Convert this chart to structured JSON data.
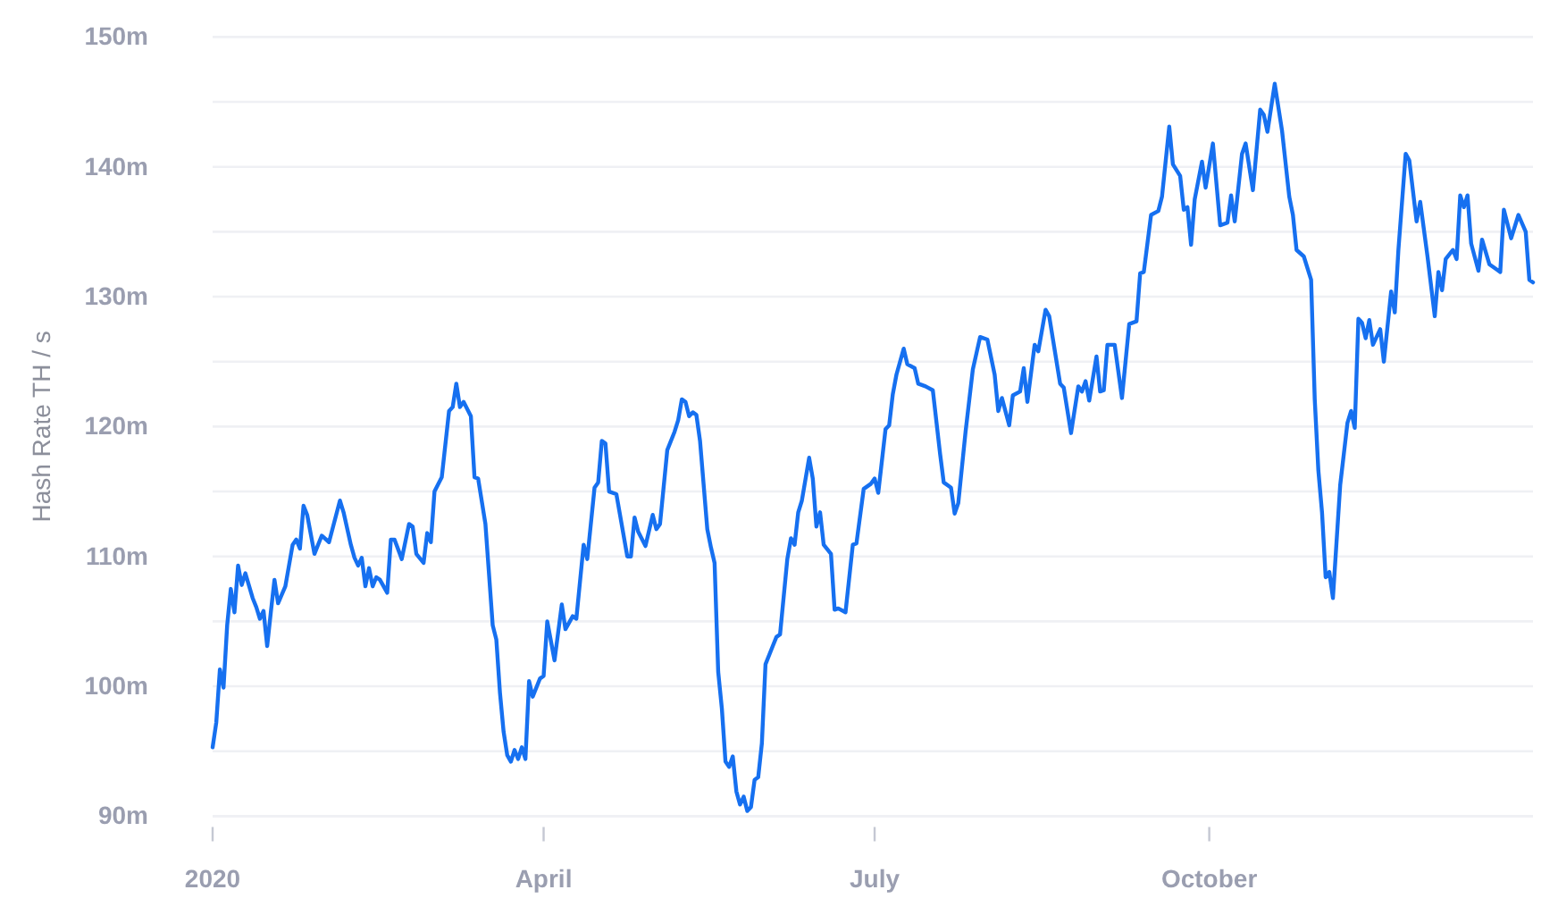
{
  "chart_data": {
    "type": "line",
    "ylabel": "Hash Rate TH / s",
    "x": [
      "2020-01-01",
      "2020-01-02",
      "2020-01-03",
      "2020-01-04",
      "2020-01-05",
      "2020-01-06",
      "2020-01-07",
      "2020-01-08",
      "2020-01-09",
      "2020-01-10",
      "2020-01-12",
      "2020-01-13",
      "2020-01-14",
      "2020-01-15",
      "2020-01-16",
      "2020-01-17",
      "2020-01-18",
      "2020-01-19",
      "2020-01-21",
      "2020-01-23",
      "2020-01-24",
      "2020-01-25",
      "2020-01-26",
      "2020-01-27",
      "2020-01-29",
      "2020-01-31",
      "2020-02-02",
      "2020-02-05",
      "2020-02-06",
      "2020-02-08",
      "2020-02-09",
      "2020-02-10",
      "2020-02-11",
      "2020-02-12",
      "2020-02-13",
      "2020-02-14",
      "2020-02-15",
      "2020-02-16",
      "2020-02-18",
      "2020-02-19",
      "2020-02-20",
      "2020-02-22",
      "2020-02-24",
      "2020-02-25",
      "2020-02-26",
      "2020-02-28",
      "2020-02-29",
      "2020-03-01",
      "2020-03-02",
      "2020-03-04",
      "2020-03-06",
      "2020-03-07",
      "2020-03-08",
      "2020-03-09",
      "2020-03-10",
      "2020-03-12",
      "2020-03-13",
      "2020-03-14",
      "2020-03-16",
      "2020-03-18",
      "2020-03-19",
      "2020-03-20",
      "2020-03-21",
      "2020-03-22",
      "2020-03-23",
      "2020-03-24",
      "2020-03-25",
      "2020-03-26",
      "2020-03-27",
      "2020-03-28",
      "2020-03-29",
      "2020-03-31",
      "2020-04-01",
      "2020-04-02",
      "2020-04-04",
      "2020-04-06",
      "2020-04-07",
      "2020-04-09",
      "2020-04-10",
      "2020-04-12",
      "2020-04-13",
      "2020-04-15",
      "2020-04-16",
      "2020-04-17",
      "2020-04-18",
      "2020-04-19",
      "2020-04-21",
      "2020-04-22",
      "2020-04-24",
      "2020-04-25",
      "2020-04-26",
      "2020-04-27",
      "2020-04-29",
      "2020-05-01",
      "2020-05-02",
      "2020-05-03",
      "2020-05-05",
      "2020-05-07",
      "2020-05-08",
      "2020-05-09",
      "2020-05-10",
      "2020-05-11",
      "2020-05-12",
      "2020-05-13",
      "2020-05-14",
      "2020-05-16",
      "2020-05-17",
      "2020-05-18",
      "2020-05-19",
      "2020-05-20",
      "2020-05-21",
      "2020-05-22",
      "2020-05-23",
      "2020-05-24",
      "2020-05-25",
      "2020-05-26",
      "2020-05-27",
      "2020-05-28",
      "2020-05-29",
      "2020-05-30",
      "2020-05-31",
      "2020-06-01",
      "2020-06-03",
      "2020-06-04",
      "2020-06-05",
      "2020-06-07",
      "2020-06-08",
      "2020-06-09",
      "2020-06-10",
      "2020-06-11",
      "2020-06-13",
      "2020-06-14",
      "2020-06-15",
      "2020-06-16",
      "2020-06-17",
      "2020-06-19",
      "2020-06-20",
      "2020-06-21",
      "2020-06-23",
      "2020-06-25",
      "2020-06-26",
      "2020-06-28",
      "2020-06-30",
      "2020-07-01",
      "2020-07-02",
      "2020-07-04",
      "2020-07-05",
      "2020-07-06",
      "2020-07-07",
      "2020-07-09",
      "2020-07-10",
      "2020-07-12",
      "2020-07-13",
      "2020-07-15",
      "2020-07-17",
      "2020-07-19",
      "2020-07-20",
      "2020-07-22",
      "2020-07-23",
      "2020-07-24",
      "2020-07-26",
      "2020-07-28",
      "2020-07-30",
      "2020-08-01",
      "2020-08-03",
      "2020-08-04",
      "2020-08-05",
      "2020-08-07",
      "2020-08-08",
      "2020-08-10",
      "2020-08-11",
      "2020-08-12",
      "2020-08-14",
      "2020-08-15",
      "2020-08-17",
      "2020-08-18",
      "2020-08-21",
      "2020-08-22",
      "2020-08-24",
      "2020-08-26",
      "2020-08-27",
      "2020-08-28",
      "2020-08-29",
      "2020-08-31",
      "2020-09-01",
      "2020-09-02",
      "2020-09-03",
      "2020-09-05",
      "2020-09-07",
      "2020-09-09",
      "2020-09-11",
      "2020-09-12",
      "2020-09-13",
      "2020-09-15",
      "2020-09-17",
      "2020-09-18",
      "2020-09-20",
      "2020-09-21",
      "2020-09-23",
      "2020-09-24",
      "2020-09-25",
      "2020-09-26",
      "2020-09-27",
      "2020-09-29",
      "2020-09-30",
      "2020-10-02",
      "2020-10-04",
      "2020-10-06",
      "2020-10-07",
      "2020-10-08",
      "2020-10-10",
      "2020-10-11",
      "2020-10-13",
      "2020-10-15",
      "2020-10-16",
      "2020-10-17",
      "2020-10-19",
      "2020-10-21",
      "2020-10-23",
      "2020-10-24",
      "2020-10-25",
      "2020-10-27",
      "2020-10-29",
      "2020-10-30",
      "2020-10-31",
      "2020-11-01",
      "2020-11-02",
      "2020-11-03",
      "2020-11-04",
      "2020-11-06",
      "2020-11-08",
      "2020-11-09",
      "2020-11-10",
      "2020-11-11",
      "2020-11-12",
      "2020-11-13",
      "2020-11-14",
      "2020-11-15",
      "2020-11-17",
      "2020-11-18",
      "2020-11-20",
      "2020-11-21",
      "2020-11-22",
      "2020-11-24",
      "2020-11-25",
      "2020-11-27",
      "2020-11-28",
      "2020-11-30",
      "2020-12-02",
      "2020-12-03",
      "2020-12-04",
      "2020-12-05",
      "2020-12-07",
      "2020-12-08",
      "2020-12-09",
      "2020-12-10",
      "2020-12-11",
      "2020-12-12",
      "2020-12-14",
      "2020-12-15",
      "2020-12-17",
      "2020-12-19",
      "2020-12-20",
      "2020-12-21",
      "2020-12-23",
      "2020-12-25",
      "2020-12-27",
      "2020-12-28",
      "2020-12-29"
    ],
    "series": [
      {
        "color": "#1670f0",
        "values": [
          95.3,
          97.2,
          101.3,
          99.9,
          104.7,
          107.5,
          105.7,
          109.3,
          107.8,
          108.7,
          106.8,
          106.1,
          105.2,
          105.8,
          103.1,
          105.7,
          108.2,
          106.4,
          107.7,
          110.9,
          111.3,
          110.6,
          113.9,
          113.2,
          110.2,
          111.6,
          111.1,
          114.3,
          113.4,
          110.9,
          109.9,
          109.3,
          109.9,
          107.7,
          109.1,
          107.7,
          108.4,
          108.2,
          107.2,
          111.3,
          111.3,
          109.8,
          112.5,
          112.3,
          110.2,
          109.5,
          111.8,
          111.1,
          115.0,
          116.1,
          121.2,
          121.5,
          123.3,
          121.5,
          121.9,
          120.8,
          116.1,
          116.0,
          112.5,
          104.7,
          103.6,
          99.5,
          96.5,
          94.7,
          94.2,
          95.1,
          94.4,
          95.3,
          94.4,
          100.4,
          99.2,
          100.6,
          100.8,
          105.0,
          102.0,
          106.3,
          104.4,
          105.4,
          105.2,
          110.9,
          109.8,
          115.3,
          115.7,
          118.9,
          118.7,
          115.0,
          114.8,
          113.2,
          110.0,
          110.0,
          113.0,
          111.9,
          110.8,
          113.2,
          112.1,
          112.5,
          118.2,
          119.6,
          120.5,
          122.1,
          121.9,
          120.8,
          121.1,
          120.9,
          118.9,
          112.1,
          110.7,
          109.5,
          101.1,
          98.3,
          94.2,
          93.8,
          94.6,
          91.9,
          90.9,
          91.5,
          90.4,
          90.7,
          92.8,
          93.0,
          95.6,
          101.7,
          103.1,
          103.8,
          104.0,
          109.8,
          111.4,
          110.9,
          113.4,
          114.3,
          117.6,
          116.0,
          112.3,
          113.4,
          110.9,
          110.2,
          105.9,
          106.0,
          105.7,
          110.9,
          111.0,
          115.2,
          115.6,
          116.0,
          114.9,
          119.8,
          120.1,
          122.5,
          124.0,
          126.0,
          124.8,
          124.5,
          123.3,
          123.1,
          122.8,
          117.9,
          115.7,
          115.3,
          113.3,
          114.1,
          119.6,
          124.4,
          126.9,
          126.7,
          124.0,
          121.2,
          122.2,
          120.1,
          122.4,
          122.7,
          124.5,
          121.9,
          126.3,
          125.8,
          129.0,
          128.5,
          123.3,
          123.0,
          119.5,
          123.1,
          122.7,
          123.5,
          122.0,
          125.4,
          122.7,
          122.8,
          126.3,
          126.3,
          122.2,
          127.9,
          128.1,
          131.8,
          131.9,
          136.3,
          136.6,
          137.7,
          143.1,
          140.2,
          139.3,
          136.7,
          136.9,
          134.0,
          137.5,
          140.4,
          138.4,
          141.8,
          135.5,
          135.7,
          137.8,
          135.8,
          141.0,
          141.8,
          138.2,
          144.4,
          144.0,
          142.7,
          146.4,
          142.8,
          137.7,
          136.3,
          133.6,
          133.1,
          131.3,
          122.1,
          116.6,
          113.4,
          108.4,
          108.8,
          106.8,
          115.5,
          120.3,
          121.2,
          119.9,
          128.3,
          128.0,
          126.8,
          128.2,
          126.3,
          127.5,
          125.0,
          130.4,
          128.8,
          133.6,
          141.0,
          140.5,
          135.8,
          137.3,
          133.1,
          128.5,
          131.9,
          130.5,
          132.9,
          133.6,
          132.9,
          137.8,
          136.9,
          137.8,
          134.1,
          132.0,
          134.4,
          132.5,
          132.1,
          131.9,
          136.7,
          134.5,
          136.3,
          135.0,
          131.3,
          131.1
        ]
      }
    ],
    "xlim": [
      "2020-01-01",
      "2020-12-29"
    ],
    "xticks": [
      {
        "value": "2020-01-01",
        "label": "2020"
      },
      {
        "value": "2020-04-01",
        "label": "April"
      },
      {
        "value": "2020-07-01",
        "label": "July"
      },
      {
        "value": "2020-10-01",
        "label": "October"
      }
    ],
    "ylim": [
      90,
      150
    ],
    "yticks": [
      {
        "value": 90,
        "label": "90m"
      },
      {
        "value": 95,
        "label": null
      },
      {
        "value": 100,
        "label": "100m"
      },
      {
        "value": 105,
        "label": null
      },
      {
        "value": 110,
        "label": "110m"
      },
      {
        "value": 115,
        "label": null
      },
      {
        "value": 120,
        "label": "120m"
      },
      {
        "value": 125,
        "label": null
      },
      {
        "value": 130,
        "label": "130m"
      },
      {
        "value": 135,
        "label": null
      },
      {
        "value": 140,
        "label": "140m"
      },
      {
        "value": 145,
        "label": null
      },
      {
        "value": 150,
        "label": "150m"
      }
    ],
    "grid": "y"
  }
}
